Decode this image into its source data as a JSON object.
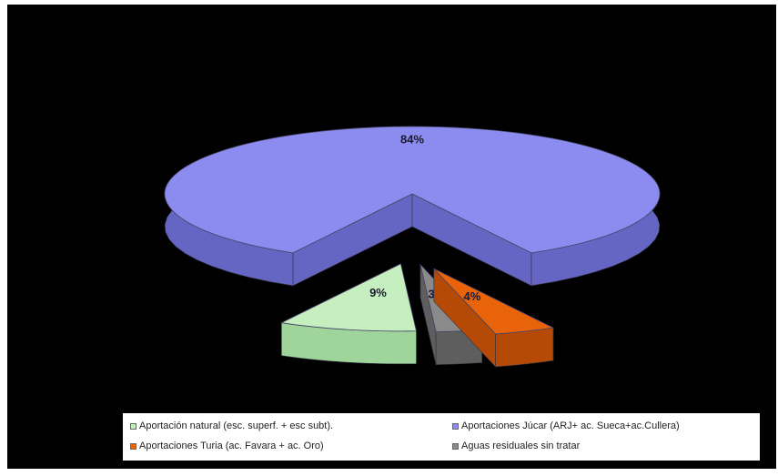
{
  "chart_data": {
    "type": "pie",
    "style": "3d-exploded",
    "slices": [
      {
        "label": "Aportación natural (esc. superf. + esc subt).",
        "value": 9,
        "display": "9%",
        "color": "#c6efc0",
        "side_color": "#9fd49a"
      },
      {
        "label": "Aportaciones Júcar (ARJ+ ac. Sueca+ac.Cullera)",
        "value": 84,
        "display": "84%",
        "color": "#8c8cf0",
        "side_color": "#6565c4"
      },
      {
        "label": "Aportaciones Turia (ac. Favara + ac. Oro)",
        "value": 4,
        "display": "4%",
        "color": "#e8630a",
        "side_color": "#b44a06"
      },
      {
        "label": "Aguas residuales sin tratar",
        "value": 3,
        "display": "3%",
        "color": "#8a8a8a",
        "side_color": "#5e5e5e"
      }
    ],
    "legend_position": "bottom"
  },
  "legend": {
    "items": [
      {
        "label": "Aportación natural (esc. superf. + esc subt).",
        "color": "#c6efc0"
      },
      {
        "label": "Aportaciones Júcar (ARJ+ ac. Sueca+ac.Cullera)",
        "color": "#8c8cf0"
      },
      {
        "label": "Aportaciones Turia (ac. Favara + ac. Oro)",
        "color": "#e8630a"
      },
      {
        "label": "Aguas residuales sin tratar",
        "color": "#8a8a8a"
      }
    ]
  },
  "colors": {
    "background": "#000000",
    "legend_background": "#ffffff"
  }
}
